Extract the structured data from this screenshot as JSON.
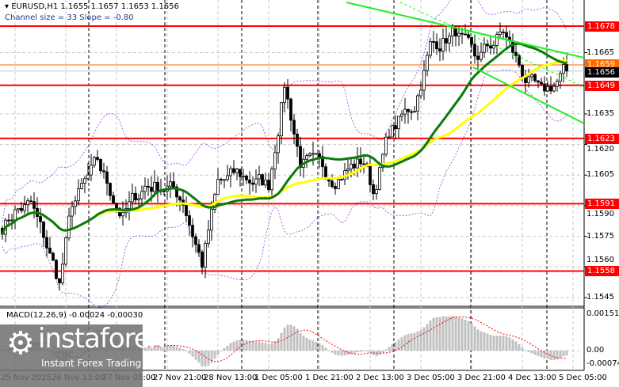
{
  "header": {
    "symbol_line": "EURUSD,H1  1.1655 1.1657 1.1653 1.1656",
    "channel_line": "Channel size = 33 Slope = -0.80"
  },
  "macd_label": "MACD(12,26,9) -0.00024 -0.00030",
  "logo": {
    "name": "instaforex",
    "tagline": "Instant Forex Trading"
  },
  "chart_data": {
    "type": "candlestick",
    "symbol": "EURUSD",
    "timeframe": "H1",
    "ylim": [
      1.154,
      1.169
    ],
    "price_ticks": [
      "1.1665",
      "1.1635",
      "1.1620",
      "1.1605",
      "1.1590",
      "1.1575",
      "1.1560",
      "1.1545"
    ],
    "levels": [
      {
        "price": 1.1678,
        "label": "1.1678"
      },
      {
        "price": 1.1649,
        "label": "1.1649"
      },
      {
        "price": 1.1623,
        "label": "1.1623"
      },
      {
        "price": 1.1591,
        "label": "1.1591"
      },
      {
        "price": 1.1558,
        "label": "1.1558"
      }
    ],
    "ask": {
      "price": 1.1659,
      "label": "1.1659",
      "color": "#ff6a00"
    },
    "bid": {
      "price": 1.1656,
      "label": "1.1656",
      "color": "#000000"
    },
    "level_color": "#ff0000",
    "price_path": [
      [
        0,
        1.158
      ],
      [
        4,
        1.1588
      ],
      [
        9,
        1.159
      ],
      [
        14,
        1.157
      ],
      [
        18,
        1.1552
      ],
      [
        22,
        1.159
      ],
      [
        30,
        1.161
      ],
      [
        38,
        1.1585
      ],
      [
        45,
        1.16
      ],
      [
        52,
        1.16
      ],
      [
        57,
        1.1593
      ],
      [
        63,
        1.1562
      ],
      [
        68,
        1.16
      ],
      [
        74,
        1.1605
      ],
      [
        84,
        1.16
      ],
      [
        89,
        1.165
      ],
      [
        94,
        1.1612
      ],
      [
        104,
        1.1605
      ],
      [
        114,
        1.1612
      ],
      [
        117,
        1.1597
      ],
      [
        122,
        1.1625
      ],
      [
        130,
        1.164
      ],
      [
        135,
        1.1668
      ],
      [
        143,
        1.1675
      ],
      [
        149,
        1.166
      ],
      [
        158,
        1.1675
      ],
      [
        164,
        1.1655
      ],
      [
        170,
        1.1643
      ],
      [
        178,
        1.1656
      ]
    ],
    "indicators": {
      "ma_fast_color": "#0a7a0a",
      "ma_slow_color": "#ffff00",
      "bands_color": "#b060e0",
      "channel_color": "#22ee22",
      "channel_size": 33,
      "channel_slope": -0.8
    },
    "macd": {
      "ticks": [
        "0.00151",
        "0.00",
        "-0.00074"
      ],
      "current": -0.00024,
      "signal": -0.0003
    },
    "time_labels": [
      "25 Nov 2025",
      "26 Nov 13:00",
      "27 Nov 05:00",
      "27 Nov 21:00",
      "28 Nov 13:00",
      "1 Dec 05:00",
      "1 Dec 21:00",
      "2 Dec 13:00",
      "3 Dec 05:00",
      "3 Dec 21:00",
      "4 Dec 13:00",
      "5 Dec 05:00"
    ]
  }
}
